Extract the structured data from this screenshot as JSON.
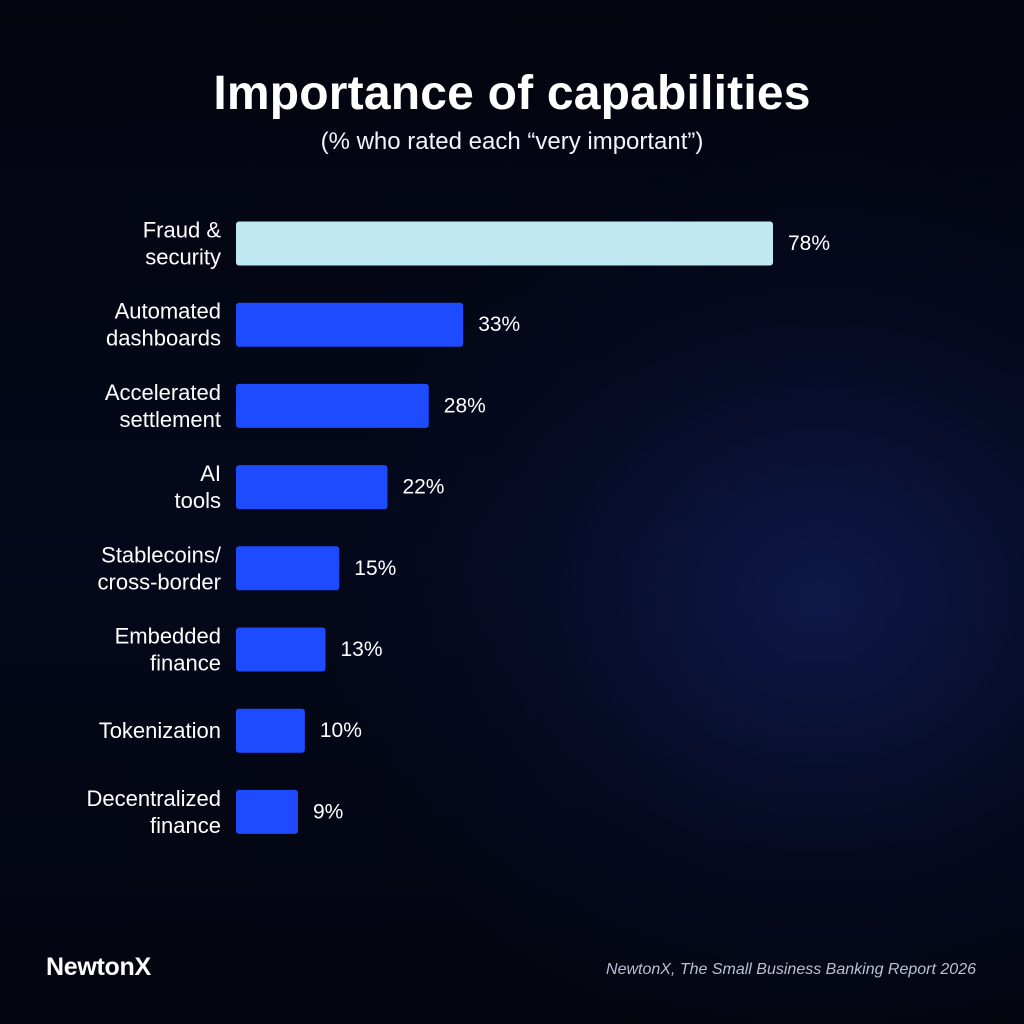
{
  "chart_data": {
    "type": "bar",
    "orientation": "horizontal",
    "title": "Importance of capabilities",
    "subtitle": "(% who rated each “very important”)",
    "categories": [
      [
        "Fraud &",
        "security"
      ],
      [
        "Automated",
        "dashboards"
      ],
      [
        "Accelerated",
        "settlement"
      ],
      [
        "AI",
        "tools"
      ],
      [
        "Stablecoins/",
        "cross-border"
      ],
      [
        "Embedded",
        "finance"
      ],
      [
        "Tokenization"
      ],
      [
        "Decentralized",
        "finance"
      ]
    ],
    "values": [
      78,
      33,
      28,
      22,
      15,
      13,
      10,
      9
    ],
    "value_labels": [
      "78%",
      "33%",
      "28%",
      "22%",
      "15%",
      "13%",
      "10%",
      "9%"
    ],
    "value_suffix": "%",
    "xlim": [
      0,
      78
    ],
    "grid": false,
    "legend": "none",
    "colors": {
      "highlight": "#bfe8f2",
      "bar": "#1f4bff"
    }
  },
  "footer": {
    "brand": "NewtonX",
    "source": "NewtonX, The Small Business Banking Report 2026"
  }
}
